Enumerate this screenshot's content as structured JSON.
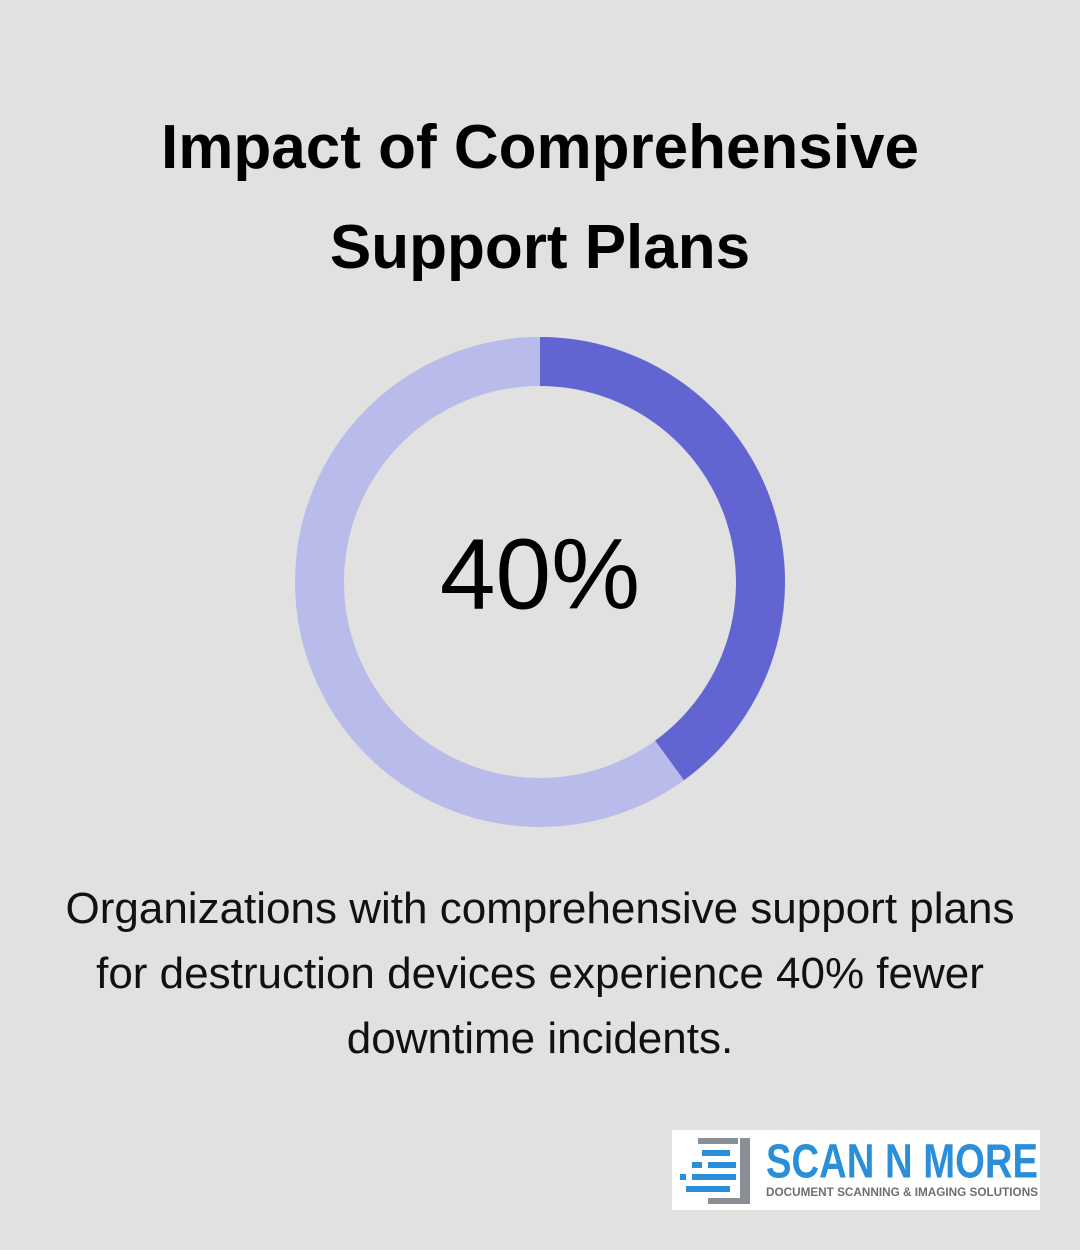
{
  "chart_data": {
    "type": "donut",
    "title": "Impact of Comprehensive Support Plans",
    "values": [
      40
    ],
    "value_labels": [
      "40%"
    ],
    "color": "#6265d1",
    "track_color": "#b9bbea",
    "caption": "Organizations with comprehensive support plans for destruction devices experience 40% fewer downtime incidents."
  },
  "logo": {
    "name": "SCAN N MORE",
    "tagline": "DOCUMENT SCANNING & IMAGING SOLUTIONS"
  }
}
